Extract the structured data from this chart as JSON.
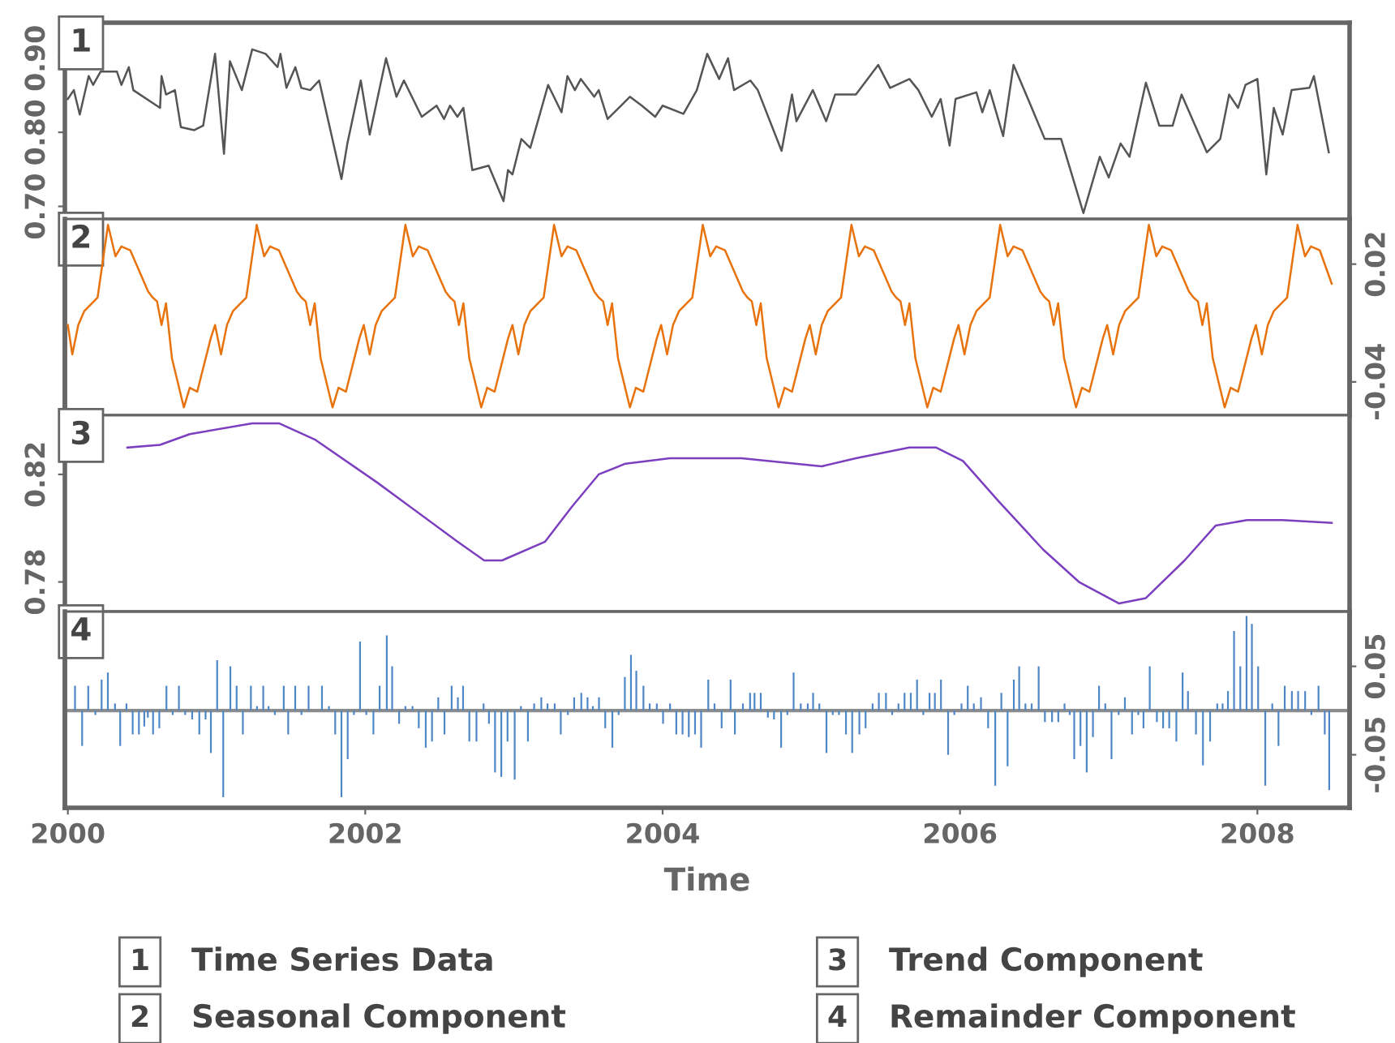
{
  "chart_data": [
    {
      "type": "line",
      "title": "1",
      "legend": "bottom",
      "tick_labels": "y",
      "xlim": [
        1999.98,
        2008.62
      ],
      "xticks": [
        2000,
        2002,
        2004,
        2006,
        2008
      ],
      "ylim": [
        0.683,
        0.948
      ],
      "yticks": [
        {
          "value": 0.7,
          "label": "0.70"
        },
        {
          "value": 0.8,
          "label": "0.80"
        },
        {
          "value": 0.9,
          "label": "0.90"
        }
      ],
      "series": [
        {
          "name": "Time Series Data",
          "color": "#555555",
          "x": [
            2000.0,
            2000.04,
            2000.08,
            2000.14,
            2000.17,
            2000.22,
            2000.33,
            2000.36,
            2000.41,
            2000.44,
            2000.62,
            2000.63,
            2000.66,
            2000.72,
            2000.76,
            2000.85,
            2000.91,
            2000.99,
            2001.05,
            2001.09,
            2001.17,
            2001.24,
            2001.33,
            2001.41,
            2001.43,
            2001.47,
            2001.53,
            2001.57,
            2001.63,
            2001.69,
            2001.84,
            2001.88,
            2001.97,
            2002.03,
            2002.14,
            2002.21,
            2002.26,
            2002.38,
            2002.48,
            2002.53,
            2002.57,
            2002.62,
            2002.66,
            2002.72,
            2002.83,
            2002.93,
            2002.96,
            2002.99,
            2003.05,
            2003.11,
            2003.23,
            2003.32,
            2003.36,
            2003.41,
            2003.45,
            2003.54,
            2003.57,
            2003.63,
            2003.78,
            2003.86,
            2003.95,
            2004.0,
            2004.14,
            2004.23,
            2004.3,
            2004.38,
            2004.44,
            2004.48,
            2004.59,
            2004.64,
            2004.8,
            2004.87,
            2004.9,
            2005.01,
            2005.1,
            2005.16,
            2005.3,
            2005.45,
            2005.53,
            2005.66,
            2005.72,
            2005.81,
            2005.87,
            2005.93,
            2005.97,
            2006.11,
            2006.15,
            2006.2,
            2006.29,
            2006.36,
            2006.47,
            2006.57,
            2006.68,
            2006.83,
            2006.94,
            2007.0,
            2007.08,
            2007.14,
            2007.25,
            2007.34,
            2007.43,
            2007.49,
            2007.66,
            2007.75,
            2007.81,
            2007.87,
            2007.92,
            2008.0,
            2008.06,
            2008.11,
            2008.17,
            2008.23,
            2008.35,
            2008.38,
            2008.41,
            2008.48
          ],
          "values": [
            0.845,
            0.857,
            0.824,
            0.876,
            0.864,
            0.882,
            0.882,
            0.864,
            0.888,
            0.857,
            0.833,
            0.876,
            0.851,
            0.857,
            0.807,
            0.803,
            0.809,
            0.906,
            0.771,
            0.896,
            0.857,
            0.912,
            0.906,
            0.888,
            0.906,
            0.86,
            0.888,
            0.86,
            0.857,
            0.87,
            0.737,
            0.785,
            0.87,
            0.797,
            0.9,
            0.848,
            0.87,
            0.821,
            0.836,
            0.818,
            0.836,
            0.821,
            0.833,
            0.749,
            0.755,
            0.707,
            0.749,
            0.743,
            0.791,
            0.779,
            0.864,
            0.827,
            0.876,
            0.857,
            0.872,
            0.848,
            0.857,
            0.818,
            0.848,
            0.836,
            0.821,
            0.836,
            0.825,
            0.857,
            0.906,
            0.872,
            0.9,
            0.857,
            0.87,
            0.857,
            0.775,
            0.851,
            0.815,
            0.857,
            0.815,
            0.851,
            0.851,
            0.891,
            0.86,
            0.872,
            0.857,
            0.821,
            0.845,
            0.782,
            0.845,
            0.854,
            0.827,
            0.857,
            0.795,
            0.891,
            0.839,
            0.791,
            0.791,
            0.691,
            0.767,
            0.739,
            0.785,
            0.767,
            0.867,
            0.809,
            0.809,
            0.851,
            0.773,
            0.791,
            0.851,
            0.833,
            0.864,
            0.872,
            0.743,
            0.833,
            0.797,
            0.857,
            0.86,
            0.876,
            0.845,
            0.773
          ]
        }
      ]
    },
    {
      "type": "line",
      "title": "2",
      "legend": "bottom",
      "tick_labels": "y",
      "xlim": [
        1999.98,
        2008.62
      ],
      "xticks": [
        2000,
        2002,
        2004,
        2006,
        2008
      ],
      "y2lim": [
        -0.057,
        0.043
      ],
      "y2ticks": [
        -0.04,
        0.02
      ],
      "series": [
        {
          "name": "Seasonal Component",
          "color": "#e8720c",
          "axis": "y2",
          "x": [
            2000.0,
            2000.03,
            2000.07,
            2000.11,
            2000.2,
            2000.27,
            2000.32,
            2000.36,
            2000.42,
            2000.54,
            2000.57,
            2000.6,
            2000.63,
            2000.66,
            2000.7,
            2000.78,
            2000.82,
            2000.87,
            2000.96,
            2000.99,
            2001.03,
            2001.07,
            2001.11,
            2001.2,
            2001.27,
            2001.32,
            2001.36,
            2001.42,
            2001.54,
            2001.57,
            2001.6,
            2001.63,
            2001.66,
            2001.7,
            2001.78,
            2001.82,
            2001.87,
            2001.96,
            2001.99,
            2002.03,
            2002.07,
            2002.11,
            2002.2,
            2002.27,
            2002.32,
            2002.36,
            2002.42,
            2002.54,
            2002.57,
            2002.6,
            2002.63,
            2002.66,
            2002.7,
            2002.78,
            2002.82,
            2002.87,
            2002.96,
            2002.99,
            2003.03,
            2003.07,
            2003.11,
            2003.2,
            2003.27,
            2003.32,
            2003.36,
            2003.42,
            2003.54,
            2003.57,
            2003.6,
            2003.63,
            2003.66,
            2003.7,
            2003.78,
            2003.82,
            2003.87,
            2003.96,
            2003.99,
            2004.03,
            2004.07,
            2004.11,
            2004.2,
            2004.27,
            2004.32,
            2004.36,
            2004.42,
            2004.54,
            2004.57,
            2004.6,
            2004.63,
            2004.66,
            2004.7,
            2004.78,
            2004.82,
            2004.87,
            2004.96,
            2004.99,
            2005.03,
            2005.07,
            2005.11,
            2005.2,
            2005.27,
            2005.32,
            2005.36,
            2005.42,
            2005.54,
            2005.57,
            2005.6,
            2005.63,
            2005.66,
            2005.7,
            2005.78,
            2005.82,
            2005.87,
            2005.96,
            2005.99,
            2006.03,
            2006.07,
            2006.11,
            2006.2,
            2006.27,
            2006.32,
            2006.36,
            2006.42,
            2006.54,
            2006.57,
            2006.6,
            2006.63,
            2006.66,
            2006.7,
            2006.78,
            2006.82,
            2006.87,
            2006.96,
            2006.99,
            2007.03,
            2007.07,
            2007.11,
            2007.2,
            2007.27,
            2007.32,
            2007.36,
            2007.42,
            2007.54,
            2007.57,
            2007.6,
            2007.63,
            2007.66,
            2007.7,
            2007.78,
            2007.82,
            2007.87,
            2007.96,
            2007.99,
            2008.03,
            2008.07,
            2008.11,
            2008.2,
            2008.27,
            2008.32,
            2008.36,
            2008.42,
            2008.5
          ],
          "values": [
            -0.011,
            -0.026,
            -0.011,
            -0.004,
            0.003,
            0.04,
            0.024,
            0.029,
            0.027,
            0.006,
            0.003,
            0.001,
            -0.011,
            0.0,
            -0.028,
            -0.053,
            -0.043,
            -0.045,
            -0.018,
            -0.011,
            -0.026,
            -0.011,
            -0.004,
            0.003,
            0.04,
            0.024,
            0.029,
            0.027,
            0.006,
            0.003,
            0.001,
            -0.011,
            0.0,
            -0.028,
            -0.053,
            -0.043,
            -0.045,
            -0.018,
            -0.011,
            -0.026,
            -0.011,
            -0.004,
            0.003,
            0.04,
            0.024,
            0.029,
            0.027,
            0.006,
            0.003,
            0.001,
            -0.011,
            0.0,
            -0.028,
            -0.053,
            -0.043,
            -0.045,
            -0.018,
            -0.011,
            -0.026,
            -0.011,
            -0.004,
            0.003,
            0.04,
            0.024,
            0.029,
            0.027,
            0.006,
            0.003,
            0.001,
            -0.011,
            0.0,
            -0.028,
            -0.053,
            -0.043,
            -0.045,
            -0.018,
            -0.011,
            -0.026,
            -0.011,
            -0.004,
            0.003,
            0.04,
            0.024,
            0.029,
            0.027,
            0.006,
            0.003,
            0.001,
            -0.011,
            0.0,
            -0.028,
            -0.053,
            -0.043,
            -0.045,
            -0.018,
            -0.011,
            -0.026,
            -0.011,
            -0.004,
            0.003,
            0.04,
            0.024,
            0.029,
            0.027,
            0.006,
            0.003,
            0.001,
            -0.011,
            0.0,
            -0.028,
            -0.053,
            -0.043,
            -0.045,
            -0.018,
            -0.011,
            -0.026,
            -0.011,
            -0.004,
            0.003,
            0.04,
            0.024,
            0.029,
            0.027,
            0.006,
            0.003,
            0.001,
            -0.011,
            0.0,
            -0.028,
            -0.053,
            -0.043,
            -0.045,
            -0.018,
            -0.011,
            -0.026,
            -0.011,
            -0.004,
            0.003,
            0.04,
            0.024,
            0.029,
            0.027,
            0.006,
            0.003,
            0.001,
            -0.011,
            0.0,
            -0.028,
            -0.053,
            -0.043,
            -0.045,
            -0.018,
            -0.011,
            -0.026,
            -0.011,
            -0.004,
            0.003,
            0.04,
            0.024,
            0.029,
            0.027,
            0.01
          ]
        }
      ]
    },
    {
      "type": "line",
      "title": "3",
      "legend": "bottom",
      "tick_labels": "y",
      "xlim": [
        1999.98,
        2008.62
      ],
      "xticks": [
        2000,
        2002,
        2004,
        2006,
        2008
      ],
      "ylim": [
        0.769,
        0.842
      ],
      "yticks": [
        0.78,
        0.82
      ],
      "series": [
        {
          "name": "Trend Component",
          "color": "#7b3fbf",
          "x": [
            2000.4,
            2000.62,
            2000.82,
            2001.24,
            2001.42,
            2001.66,
            2002.08,
            2002.62,
            2002.8,
            2002.92,
            2003.21,
            2003.39,
            2003.57,
            2003.75,
            2004.05,
            2004.53,
            2005.07,
            2005.3,
            2005.66,
            2005.84,
            2006.02,
            2006.26,
            2006.56,
            2006.8,
            2007.07,
            2007.25,
            2007.51,
            2007.72,
            2007.93,
            2008.17,
            2008.5
          ],
          "values": [
            0.83,
            0.831,
            0.835,
            0.839,
            0.839,
            0.833,
            0.817,
            0.795,
            0.788,
            0.788,
            0.795,
            0.808,
            0.82,
            0.824,
            0.826,
            0.826,
            0.823,
            0.826,
            0.83,
            0.83,
            0.825,
            0.81,
            0.792,
            0.78,
            0.772,
            0.774,
            0.788,
            0.801,
            0.803,
            0.803,
            0.802
          ]
        }
      ]
    },
    {
      "type": "bar",
      "title": "4",
      "legend": "bottom",
      "xlabel": "Time",
      "xlim": [
        1999.98,
        2008.62
      ],
      "xticks": [
        2000,
        2002,
        2004,
        2006,
        2008
      ],
      "y2lim": [
        -0.11,
        0.112
      ],
      "y2ticks": [
        -0.05,
        0.05
      ],
      "ref_lines": [
        {
          "axis": "y2",
          "value": 0,
          "color": "#8c8c8c"
        }
      ],
      "series": [
        {
          "name": "Remainder Component",
          "color": "#4f86c6",
          "axis": "y2",
          "x": [
            2000.048,
            2000.096,
            2000.137,
            2000.185,
            2000.227,
            2000.269,
            2000.317,
            2000.352,
            2000.394,
            2000.436,
            2000.478,
            2000.514,
            2000.538,
            2000.573,
            2000.615,
            2000.663,
            2000.705,
            2000.747,
            2000.789,
            2000.836,
            2000.884,
            2000.926,
            2000.962,
            2001.004,
            2001.045,
            2001.093,
            2001.135,
            2001.177,
            2001.231,
            2001.272,
            2001.314,
            2001.35,
            2001.392,
            2001.452,
            2001.482,
            2001.529,
            2001.571,
            2001.619,
            2001.709,
            2001.756,
            2001.798,
            2001.84,
            2001.882,
            2001.924,
            2001.965,
            2002.007,
            2002.055,
            2002.097,
            2002.145,
            2002.181,
            2002.228,
            2002.27,
            2002.318,
            2002.36,
            2002.407,
            2002.449,
            2002.491,
            2002.533,
            2002.581,
            2002.623,
            2002.658,
            2002.7,
            2002.748,
            2002.796,
            2002.832,
            2002.873,
            2002.915,
            2002.957,
            2003.005,
            2003.047,
            2003.094,
            2003.136,
            2003.184,
            2003.226,
            2003.274,
            2003.315,
            2003.363,
            2003.405,
            2003.453,
            2003.495,
            2003.531,
            2003.572,
            2003.614,
            2003.662,
            2003.704,
            2003.746,
            2003.787,
            2003.823,
            2003.871,
            2003.913,
            2003.961,
            2004.003,
            2004.05,
            2004.092,
            2004.134,
            2004.176,
            2004.218,
            2004.259,
            2004.307,
            2004.349,
            2004.397,
            2004.457,
            2004.486,
            2004.54,
            2004.588,
            2004.618,
            2004.66,
            2004.708,
            2004.749,
            2004.797,
            2004.839,
            2004.881,
            2004.929,
            2004.976,
            2005.012,
            2005.054,
            2005.102,
            2005.144,
            2005.186,
            2005.233,
            2005.275,
            2005.323,
            2005.365,
            2005.412,
            2005.454,
            2005.502,
            2005.544,
            2005.586,
            2005.627,
            2005.669,
            2005.711,
            2005.753,
            2005.795,
            2005.831,
            2005.872,
            2005.92,
            2005.962,
            2006.01,
            2006.052,
            2006.093,
            2006.141,
            2006.189,
            2006.237,
            2006.278,
            2006.32,
            2006.362,
            2006.398,
            2006.44,
            2006.482,
            2006.529,
            2006.571,
            2006.619,
            2006.661,
            2006.703,
            2006.738,
            2006.768,
            2006.81,
            2006.852,
            2006.894,
            2006.935,
            2006.977,
            2007.019,
            2007.067,
            2007.109,
            2007.157,
            2007.199,
            2007.234,
            2007.276,
            2007.324,
            2007.366,
            2007.407,
            2007.455,
            2007.497,
            2007.533,
            2007.587,
            2007.634,
            2007.682,
            2007.73,
            2007.766,
            2007.802,
            2007.843,
            2007.885,
            2007.927,
            2007.963,
            2008.005,
            2008.053,
            2008.1,
            2008.142,
            2008.184,
            2008.232,
            2008.274,
            2008.321,
            2008.363,
            2008.411,
            2008.453,
            2008.483
          ],
          "values": [
            0.028,
            -0.04,
            0.028,
            -0.005,
            0.035,
            0.043,
            0.008,
            -0.04,
            0.008,
            -0.027,
            -0.027,
            -0.018,
            -0.008,
            -0.027,
            -0.02,
            0.028,
            -0.005,
            0.028,
            -0.005,
            -0.01,
            -0.027,
            -0.01,
            -0.048,
            0.057,
            -0.098,
            0.05,
            0.028,
            -0.027,
            0.028,
            0.005,
            0.028,
            0.005,
            -0.005,
            0.028,
            -0.027,
            0.028,
            -0.005,
            0.028,
            0.028,
            0.005,
            -0.027,
            -0.098,
            -0.055,
            -0.005,
            0.078,
            -0.005,
            -0.027,
            0.028,
            0.085,
            0.05,
            -0.015,
            0.005,
            0.005,
            -0.02,
            -0.042,
            -0.035,
            0.015,
            -0.027,
            0.028,
            0.015,
            0.028,
            -0.035,
            -0.035,
            0.008,
            -0.015,
            -0.07,
            -0.075,
            -0.035,
            -0.078,
            0.005,
            -0.035,
            0.008,
            0.015,
            0.008,
            0.008,
            -0.027,
            -0.005,
            0.015,
            0.02,
            0.015,
            0.005,
            0.015,
            -0.02,
            -0.042,
            -0.005,
            0.038,
            0.063,
            0.045,
            0.028,
            0.008,
            0.008,
            -0.015,
            0.008,
            -0.027,
            -0.027,
            -0.03,
            -0.027,
            -0.042,
            0.035,
            0.008,
            -0.02,
            0.035,
            -0.027,
            0.008,
            0.02,
            0.02,
            0.02,
            -0.008,
            -0.01,
            -0.042,
            -0.005,
            0.043,
            0.008,
            0.008,
            0.02,
            0.008,
            -0.048,
            -0.005,
            -0.005,
            -0.027,
            -0.048,
            -0.027,
            -0.02,
            0.008,
            0.02,
            0.02,
            -0.005,
            0.008,
            0.02,
            0.02,
            0.035,
            -0.005,
            0.02,
            0.02,
            0.035,
            -0.05,
            -0.005,
            0.008,
            0.028,
            0.008,
            0.015,
            -0.02,
            -0.085,
            0.02,
            -0.063,
            0.035,
            0.05,
            0.008,
            0.008,
            0.05,
            -0.013,
            -0.013,
            -0.013,
            0.008,
            -0.005,
            -0.055,
            -0.04,
            -0.07,
            -0.03,
            0.028,
            0.008,
            -0.055,
            -0.005,
            0.015,
            -0.027,
            -0.005,
            -0.02,
            0.05,
            -0.013,
            -0.02,
            -0.02,
            -0.035,
            0.043,
            0.022,
            -0.027,
            -0.062,
            -0.035,
            0.008,
            0.008,
            0.022,
            0.09,
            0.05,
            0.107,
            0.098,
            0.05,
            -0.085,
            0.008,
            -0.04,
            0.028,
            0.022,
            0.022,
            0.022,
            -0.005,
            0.028,
            -0.027,
            -0.09
          ]
        }
      ]
    }
  ]
}
